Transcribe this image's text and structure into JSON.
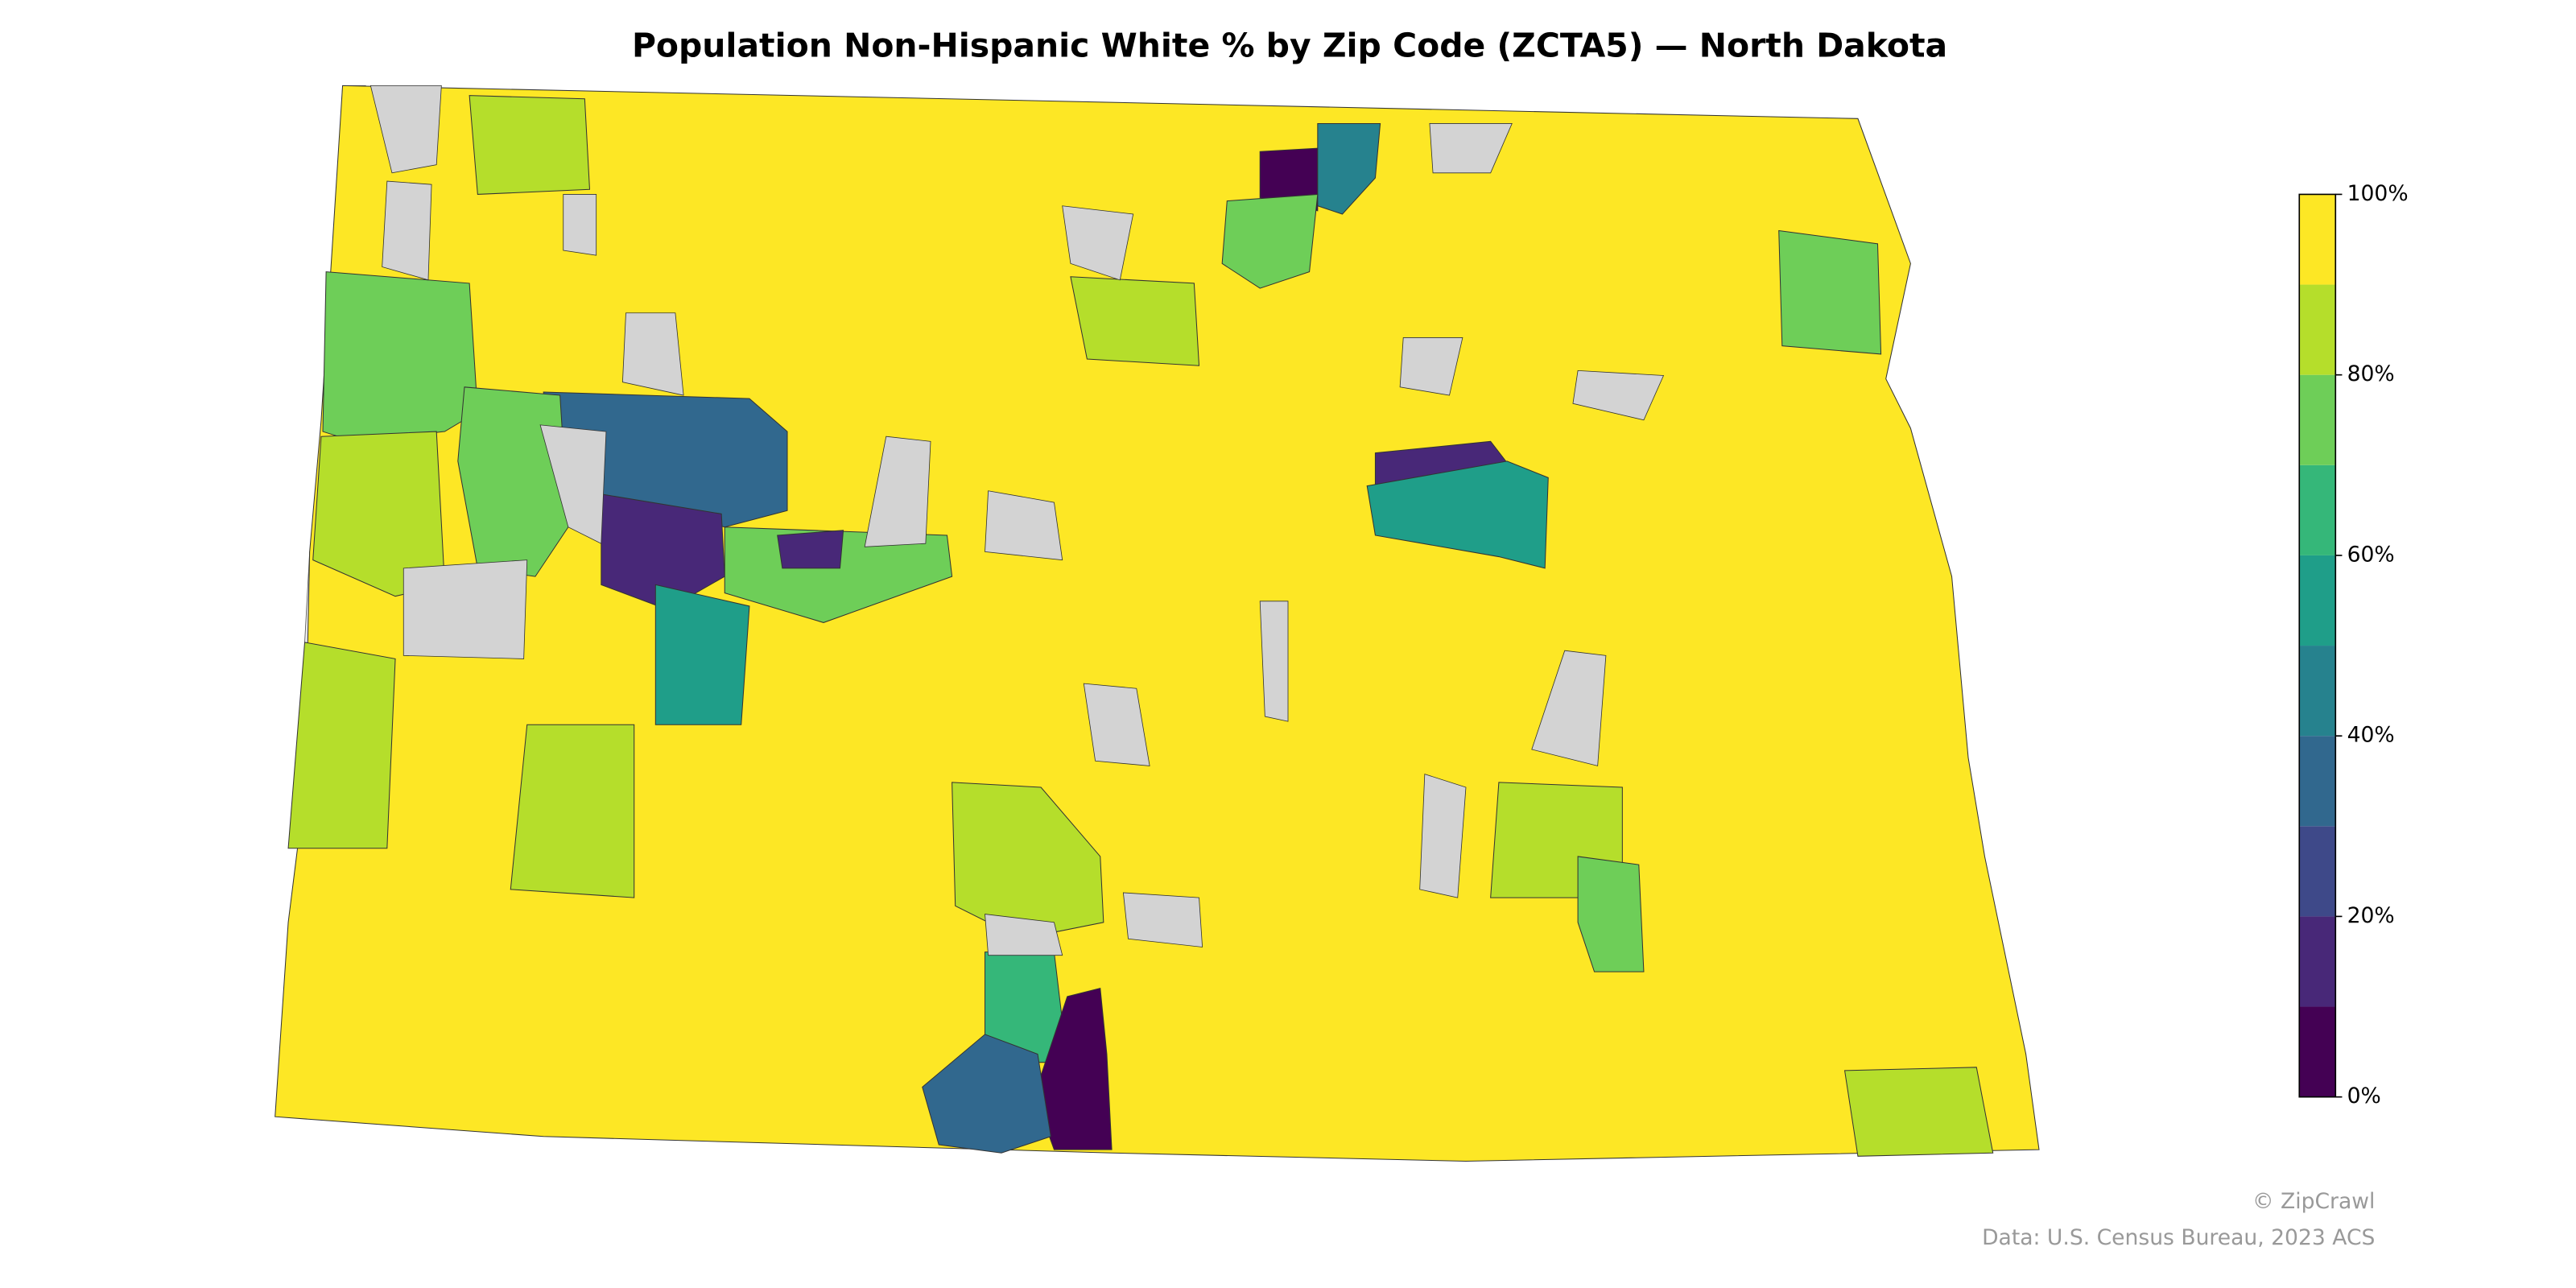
{
  "title": "Population Non-Hispanic White % by Zip Code (ZCTA5) — North Dakota",
  "map": {
    "regions": [
      {
        "value": 95
      },
      {
        "value": 75
      },
      {
        "value": 85
      },
      {
        "value": 85
      },
      {
        "value": 85
      },
      {
        "value": 35
      },
      {
        "value": 15
      },
      {
        "value": 55
      },
      {
        "value": 75
      },
      {
        "value": 15
      },
      {
        "value": 5
      },
      {
        "value": 45
      },
      {
        "value": 75
      },
      {
        "value": 15
      },
      {
        "value": 55
      },
      {
        "value": 75
      },
      {
        "value": 85
      },
      {
        "value": 65
      },
      {
        "value": 5
      },
      {
        "value": 35
      },
      {
        "value": 85
      },
      {
        "value": 85
      },
      {
        "value": 75
      },
      {
        "value": 85
      },
      {
        "value": 75
      },
      {
        "value": 85
      }
    ]
  },
  "colorbar": {
    "clim": [
      0,
      100
    ],
    "colors": [
      "#440154",
      "#482878",
      "#3e4989",
      "#31688e",
      "#26828e",
      "#1f9e89",
      "#35b779",
      "#6ece58",
      "#b5de2b",
      "#fde725"
    ],
    "ticks": [
      {
        "value": 0,
        "label": "0%"
      },
      {
        "value": 20,
        "label": "20%"
      },
      {
        "value": 40,
        "label": "40%"
      },
      {
        "value": 60,
        "label": "60%"
      },
      {
        "value": 80,
        "label": "80%"
      },
      {
        "value": 100,
        "label": "100%"
      }
    ]
  },
  "footer": {
    "credit": "© ZipCrawl",
    "source": "Data: U.S. Census Bureau, 2023 ACS"
  }
}
